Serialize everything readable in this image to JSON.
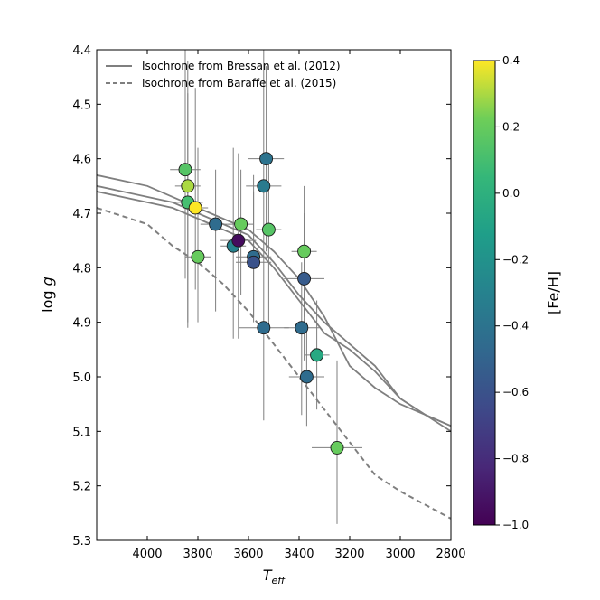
{
  "chart_data": {
    "type": "scatter",
    "title": "",
    "xlabel_main": "T",
    "xlabel_sub": "eff",
    "ylabel_main": "log ",
    "ylabel_italic": "g",
    "xlim": [
      4200,
      2800
    ],
    "ylim": [
      5.3,
      4.4
    ],
    "x_ticks": [
      4000,
      3800,
      3600,
      3400,
      3200,
      3000,
      2800
    ],
    "y_ticks": [
      4.4,
      4.5,
      4.6,
      4.7,
      4.8,
      4.9,
      5.0,
      5.1,
      5.2,
      5.3
    ],
    "x_tick_labels": [
      "4000",
      "3800",
      "3600",
      "3400",
      "3200",
      "3000",
      "2800"
    ],
    "y_tick_labels": [
      "4.4",
      "4.5",
      "4.6",
      "4.7",
      "4.8",
      "4.9",
      "5.0",
      "5.1",
      "5.2",
      "5.3"
    ],
    "legend": {
      "position": "top-left",
      "entries": [
        {
          "label": "Isochrone from Bressan et al. (2012)",
          "style": "solid",
          "color": "#7f7f7f"
        },
        {
          "label": "Isochrone from Baraffe et al. (2015)",
          "style": "dashed",
          "color": "#7f7f7f"
        }
      ]
    },
    "colorbar": {
      "label": "[Fe/H]",
      "range": [
        -1.0,
        0.4
      ],
      "ticks": [
        0.4,
        0.2,
        0.0,
        -0.2,
        -0.4,
        -0.6,
        -0.8,
        -1.0
      ],
      "tick_labels": [
        "0.4",
        "0.2",
        "0.0",
        "−0.2",
        "−0.4",
        "−0.6",
        "−0.8",
        "−1.0"
      ],
      "colormap": "viridis"
    },
    "isochrones_bressan": [
      {
        "x": [
          4200,
          4000,
          3900,
          3800,
          3700,
          3600,
          3500,
          3400,
          3300,
          3200,
          3100,
          3000,
          2900,
          2800
        ],
        "y": [
          4.63,
          4.65,
          4.67,
          4.69,
          4.71,
          4.73,
          4.77,
          4.82,
          4.89,
          4.98,
          5.02,
          5.05,
          5.07,
          5.09
        ]
      },
      {
        "x": [
          4200,
          4000,
          3900,
          3800,
          3700,
          3600,
          3500,
          3400,
          3300,
          3200,
          3100,
          3000,
          2900,
          2800
        ],
        "y": [
          4.65,
          4.67,
          4.68,
          4.7,
          4.72,
          4.74,
          4.79,
          4.85,
          4.9,
          4.94,
          4.98,
          5.04,
          5.07,
          5.09
        ]
      },
      {
        "x": [
          4200,
          4000,
          3900,
          3800,
          3700,
          3600,
          3500,
          3400,
          3300,
          3200,
          3100,
          3000,
          2900,
          2800
        ],
        "y": [
          4.66,
          4.68,
          4.69,
          4.71,
          4.73,
          4.75,
          4.8,
          4.86,
          4.92,
          4.95,
          4.99,
          5.04,
          5.07,
          5.1
        ]
      }
    ],
    "isochrone_baraffe": {
      "x": [
        4200,
        4000,
        3900,
        3800,
        3700,
        3600,
        3500,
        3400,
        3300,
        3200,
        3100,
        3000,
        2900,
        2800
      ],
      "y": [
        4.69,
        4.72,
        4.76,
        4.79,
        4.83,
        4.88,
        4.94,
        5.0,
        5.06,
        5.12,
        5.18,
        5.21,
        5.235,
        5.26
      ]
    },
    "points": [
      {
        "teff": 3850,
        "logg": 4.62,
        "feh": 0.15,
        "teff_err": 60,
        "logg_err_lo": 0.2,
        "logg_err_hi": 0.25
      },
      {
        "teff": 3840,
        "logg": 4.65,
        "feh": 0.3,
        "teff_err": 50,
        "logg_err_lo": 0.25,
        "logg_err_hi": 0.23
      },
      {
        "teff": 3840,
        "logg": 4.68,
        "feh": 0.1,
        "teff_err": 60,
        "logg_err_lo": 0.23,
        "logg_err_hi": 0.2
      },
      {
        "teff": 3810,
        "logg": 4.69,
        "feh": 0.4,
        "teff_err": 50,
        "logg_err_lo": 0.15,
        "logg_err_hi": 0.22
      },
      {
        "teff": 3800,
        "logg": 4.78,
        "feh": 0.2,
        "teff_err": 50,
        "logg_err_lo": 0.12,
        "logg_err_hi": 0.2
      },
      {
        "teff": 3730,
        "logg": 4.72,
        "feh": -0.45,
        "teff_err": 60,
        "logg_err_lo": 0.16,
        "logg_err_hi": 0.1
      },
      {
        "teff": 3660,
        "logg": 4.76,
        "feh": -0.3,
        "teff_err": 50,
        "logg_err_lo": 0.17,
        "logg_err_hi": 0.18
      },
      {
        "teff": 3640,
        "logg": 4.75,
        "feh": -0.95,
        "teff_err": 70,
        "logg_err_lo": 0.18,
        "logg_err_hi": 0.16
      },
      {
        "teff": 3630,
        "logg": 4.72,
        "feh": 0.2,
        "teff_err": 50,
        "logg_err_lo": 0.13,
        "logg_err_hi": 0.1
      },
      {
        "teff": 3580,
        "logg": 4.78,
        "feh": -0.45,
        "teff_err": 70,
        "logg_err_lo": 0.12,
        "logg_err_hi": 0.15
      },
      {
        "teff": 3580,
        "logg": 4.79,
        "feh": -0.6,
        "teff_err": 70,
        "logg_err_lo": 0.1,
        "logg_err_hi": 0.13
      },
      {
        "teff": 3540,
        "logg": 4.65,
        "feh": -0.35,
        "teff_err": 70,
        "logg_err_lo": 0.14,
        "logg_err_hi": 0.25
      },
      {
        "teff": 3530,
        "logg": 4.6,
        "feh": -0.4,
        "teff_err": 70,
        "logg_err_lo": 0.17,
        "logg_err_hi": 0.17
      },
      {
        "teff": 3520,
        "logg": 4.73,
        "feh": 0.15,
        "teff_err": 50,
        "logg_err_lo": 0.19,
        "logg_err_hi": 0.13
      },
      {
        "teff": 3540,
        "logg": 4.91,
        "feh": -0.45,
        "teff_err": 100,
        "logg_err_lo": 0.17,
        "logg_err_hi": 0.12
      },
      {
        "teff": 3380,
        "logg": 4.77,
        "feh": 0.2,
        "teff_err": 50,
        "logg_err_lo": 0.12,
        "logg_err_hi": 0.12
      },
      {
        "teff": 3380,
        "logg": 4.82,
        "feh": -0.55,
        "teff_err": 80,
        "logg_err_lo": 0.15,
        "logg_err_hi": 0.12
      },
      {
        "teff": 3390,
        "logg": 4.91,
        "feh": -0.45,
        "teff_err": 70,
        "logg_err_lo": 0.16,
        "logg_err_hi": 0.12
      },
      {
        "teff": 3330,
        "logg": 4.96,
        "feh": -0.05,
        "teff_err": 50,
        "logg_err_lo": 0.1,
        "logg_err_hi": 0.1
      },
      {
        "teff": 3370,
        "logg": 5.0,
        "feh": -0.45,
        "teff_err": 70,
        "logg_err_lo": 0.09,
        "logg_err_hi": 0.1
      },
      {
        "teff": 3250,
        "logg": 5.13,
        "feh": 0.2,
        "teff_err": 100,
        "logg_err_lo": 0.14,
        "logg_err_hi": 0.16
      }
    ]
  }
}
